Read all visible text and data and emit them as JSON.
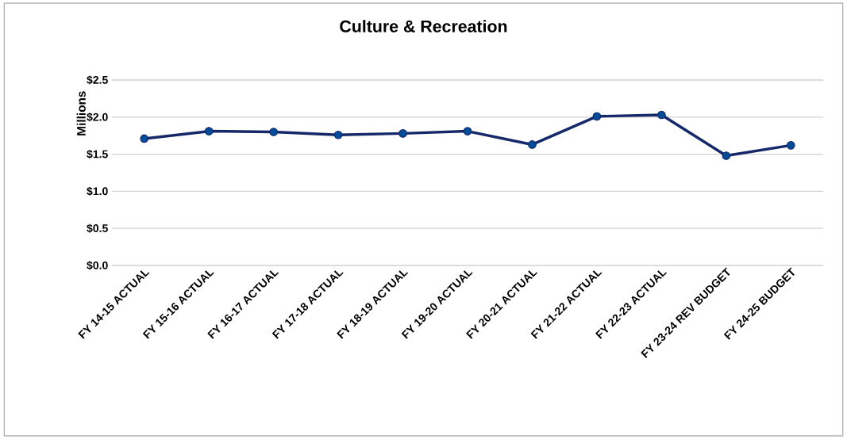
{
  "chart_data": {
    "type": "line",
    "title": "Culture & Recreation",
    "ylabel": "Millions",
    "categories": [
      "FY 14-15 ACTUAL",
      "FY 15-16 ACTUAL",
      "FY 16-17 ACTUAL",
      "FY 17-18 ACTUAL",
      "FY 18-19 ACTUAL",
      "FY 19-20 ACTUAL",
      "FY 20-21 ACTUAL",
      "FY 21-22 ACTUAL",
      "FY 22-23 ACTUAL",
      "FY 23-24 REV BUDGET",
      "FY 24-25 BUDGET"
    ],
    "series": [
      {
        "color": "#14286a",
        "values": [
          1.71,
          1.81,
          1.8,
          1.76,
          1.78,
          1.81,
          1.63,
          2.01,
          2.03,
          1.48,
          1.62
        ]
      }
    ],
    "ylim": [
      0,
      2.5
    ],
    "yticks": [
      {
        "value": 0,
        "label": "$0.0"
      },
      {
        "value": 0.5,
        "label": "$0.5"
      },
      {
        "value": 1,
        "label": "$1.0"
      },
      {
        "value": 1.5,
        "label": "$1.5"
      },
      {
        "value": 2,
        "label": "$2.0"
      },
      {
        "value": 2.5,
        "label": "$2.5"
      }
    ],
    "grid": "y",
    "marker": "circle",
    "line_style": "solid"
  }
}
